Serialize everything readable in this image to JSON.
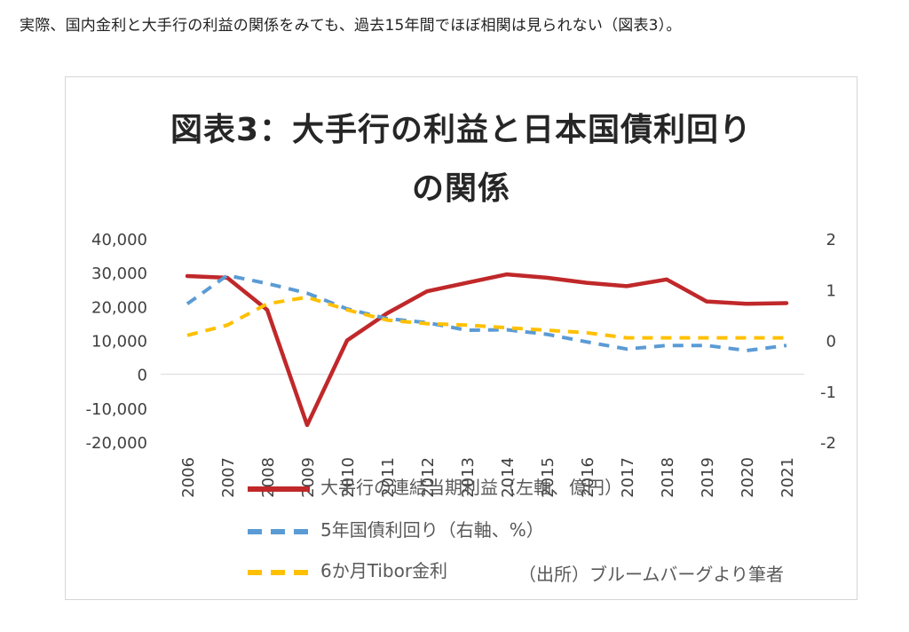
{
  "intro_text": "実際、国内金利と大手行の利益の関係をみても、過去15年間でほぼ相関は見られない（図表3）。",
  "chart_data": {
    "type": "line",
    "title_line1": "図表3：大手行の利益と日本国債利回り",
    "title_line2": "の関係",
    "categories": [
      "2006",
      "2007",
      "2008",
      "2009",
      "2010",
      "2011",
      "2012",
      "2013",
      "2014",
      "2015",
      "2016",
      "2017",
      "2018",
      "2019",
      "2020",
      "2021"
    ],
    "left_axis": {
      "ylim": [
        -20000,
        40000
      ],
      "ticks": [
        40000,
        30000,
        20000,
        10000,
        0,
        -10000,
        -20000
      ],
      "tick_labels": [
        "40,000",
        "30,000",
        "20,000",
        "10,000",
        "0",
        "-10,000",
        "-20,000"
      ]
    },
    "right_axis": {
      "ylim": [
        -2,
        2
      ],
      "ticks": [
        2,
        1,
        0,
        -1,
        -2
      ],
      "tick_labels": [
        "2",
        "1",
        "0",
        "-1",
        "-2"
      ]
    },
    "series": [
      {
        "name": "大手行の連結当期利益（左軸、億円）",
        "axis": "left",
        "style": "solid",
        "color": "#c0282a",
        "values": [
          29000,
          28500,
          19000,
          -15000,
          10000,
          18000,
          24500,
          27000,
          29500,
          28500,
          27000,
          26000,
          28000,
          21500,
          20800,
          21000
        ]
      },
      {
        "name": "5年国債利回り（右軸、%）",
        "axis": "right",
        "style": "dashed",
        "color": "#5b9bd5",
        "values": [
          0.72,
          1.28,
          1.12,
          0.93,
          0.62,
          0.43,
          0.35,
          0.2,
          0.21,
          0.12,
          -0.03,
          -0.17,
          -0.1,
          -0.1,
          -0.2,
          -0.1
        ]
      },
      {
        "name": "6か月Tibor金利",
        "axis": "right",
        "style": "dashed",
        "color": "#ffc000",
        "values": [
          0.1,
          0.3,
          0.72,
          0.85,
          0.6,
          0.4,
          0.33,
          0.3,
          0.25,
          0.2,
          0.15,
          0.05,
          0.05,
          0.05,
          0.05,
          0.05
        ]
      }
    ],
    "source": "（出所）ブルームバーグより筆者"
  }
}
